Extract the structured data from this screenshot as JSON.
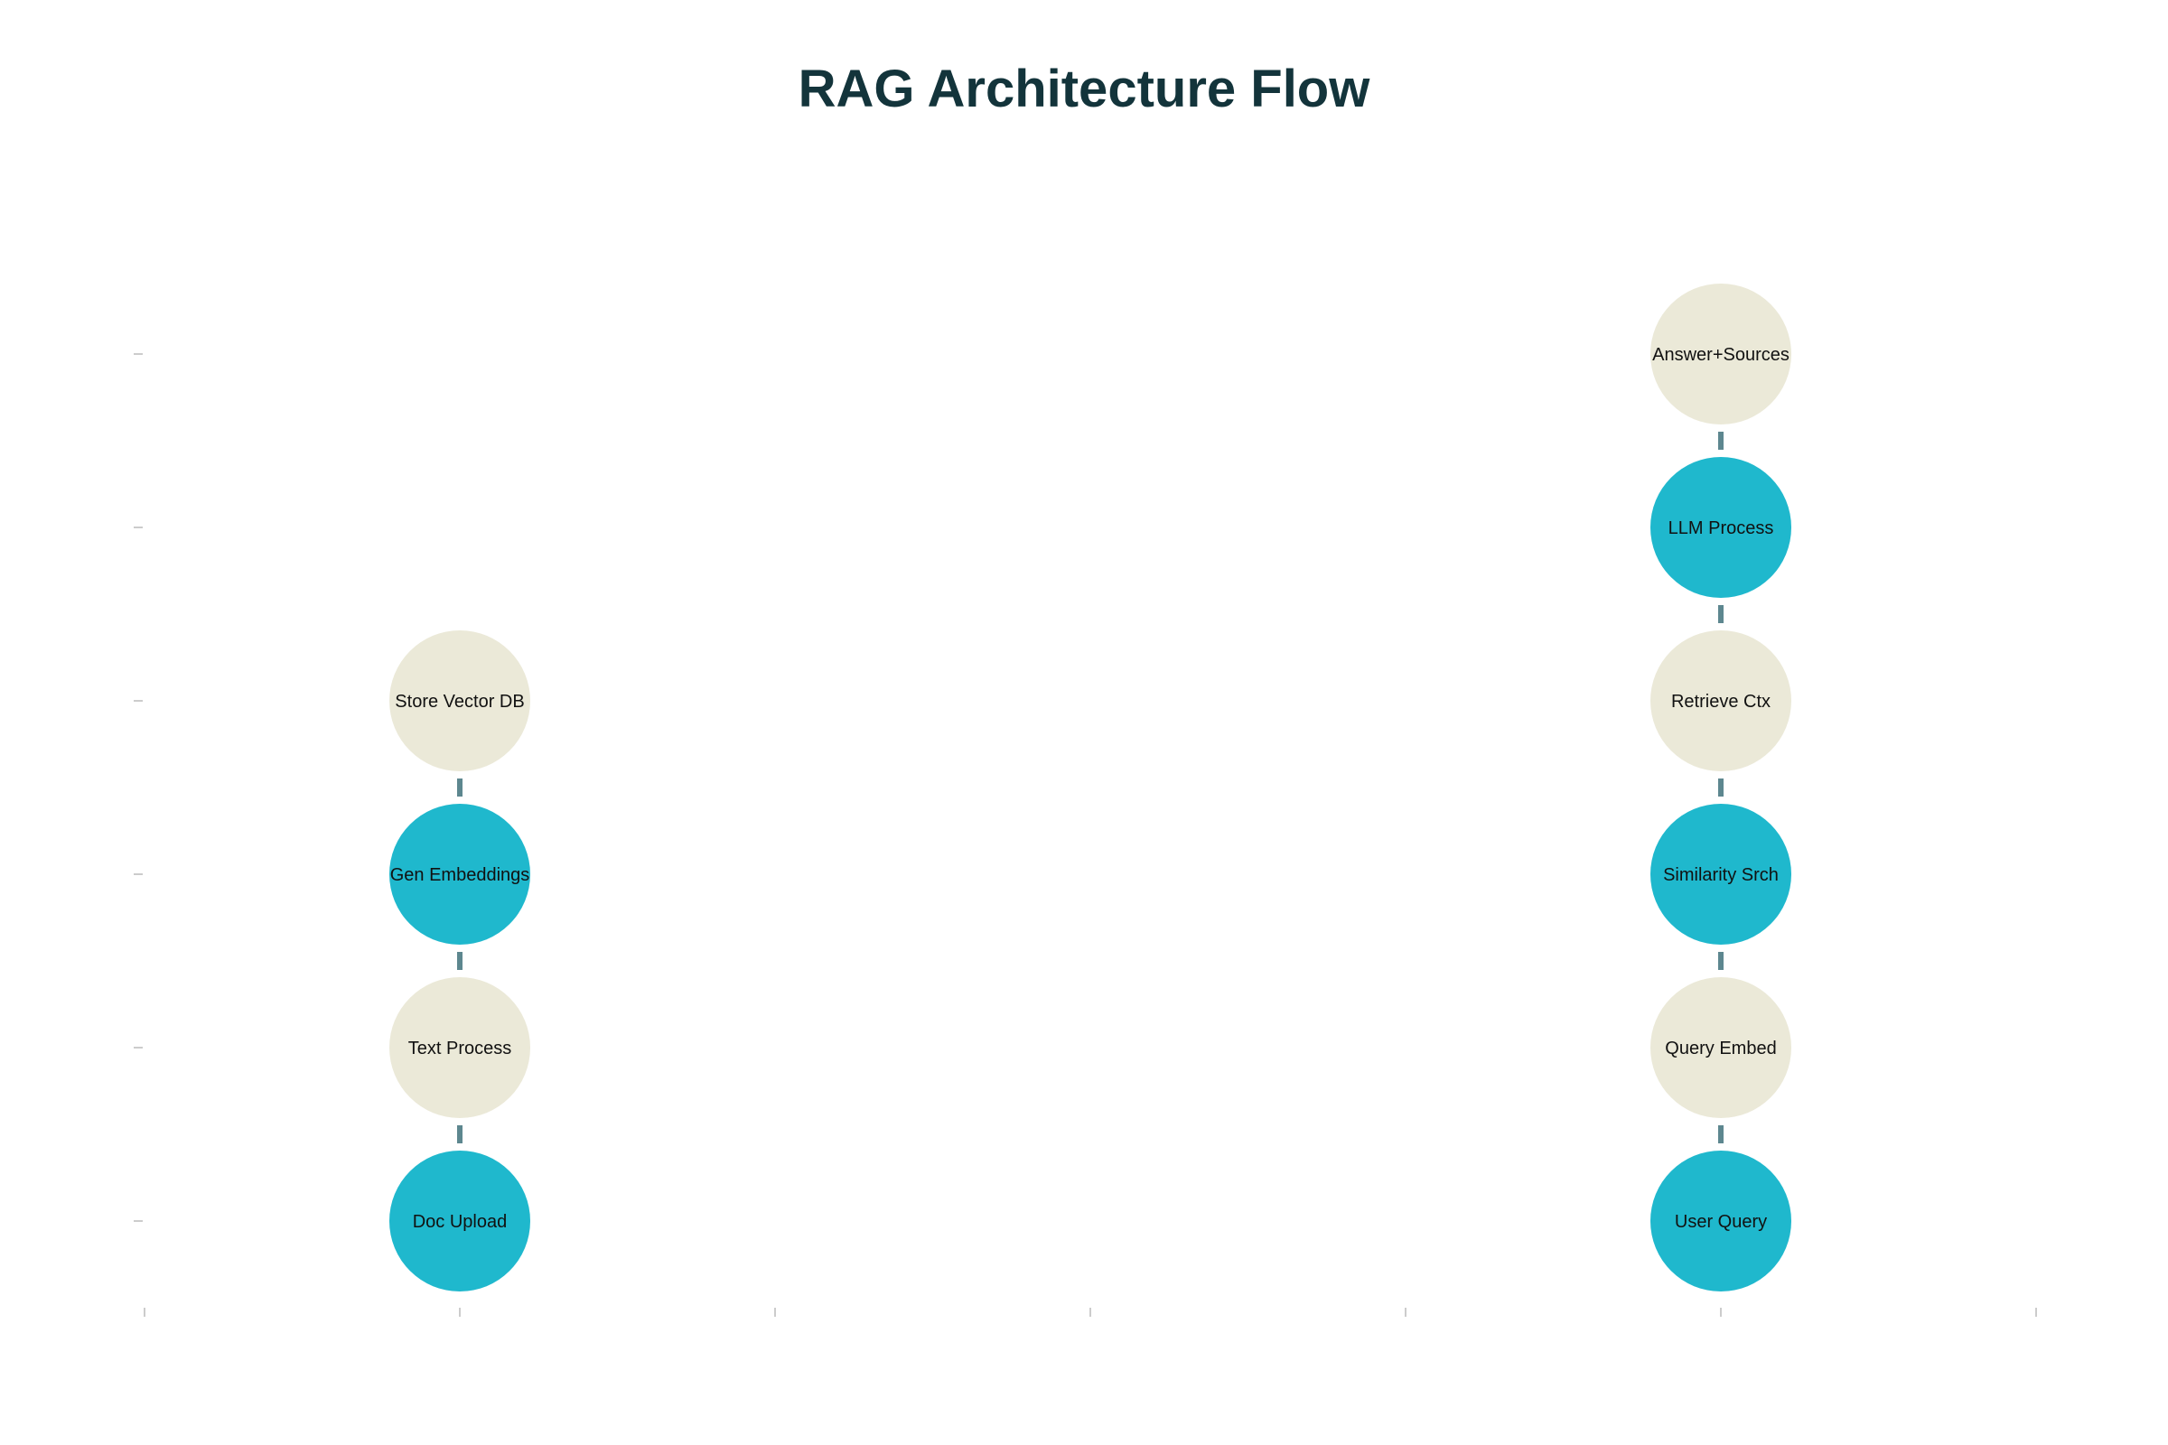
{
  "title": "RAG Architecture Flow",
  "colors": {
    "title": "#13343B",
    "node_teal": "#1FB8CD",
    "node_beige": "#EBE9D8",
    "connector": "#5D878F",
    "label": "#111111",
    "tick": "#CCCCCC"
  },
  "flows": [
    {
      "name": "",
      "column": 1,
      "nodes": [
        {
          "label": "Doc Upload",
          "level": 1,
          "style": "teal"
        },
        {
          "label": "Text Process",
          "level": 2,
          "style": "beige"
        },
        {
          "label": "Gen Embeddings",
          "level": 3,
          "style": "teal"
        },
        {
          "label": "Store Vector DB",
          "level": 4,
          "style": "beige"
        }
      ]
    },
    {
      "name": "",
      "column": 5,
      "nodes": [
        {
          "label": "User Query",
          "level": 1,
          "style": "teal"
        },
        {
          "label": "Query Embed",
          "level": 2,
          "style": "beige"
        },
        {
          "label": "Similarity Srch",
          "level": 3,
          "style": "teal"
        },
        {
          "label": "Retrieve Ctx",
          "level": 4,
          "style": "beige"
        },
        {
          "label": "LLM Process",
          "level": 5,
          "style": "teal"
        },
        {
          "label": "Answer+Sources",
          "level": 6,
          "style": "beige"
        }
      ]
    }
  ],
  "axes": {
    "x_ticks": 7,
    "y_ticks": 6
  }
}
